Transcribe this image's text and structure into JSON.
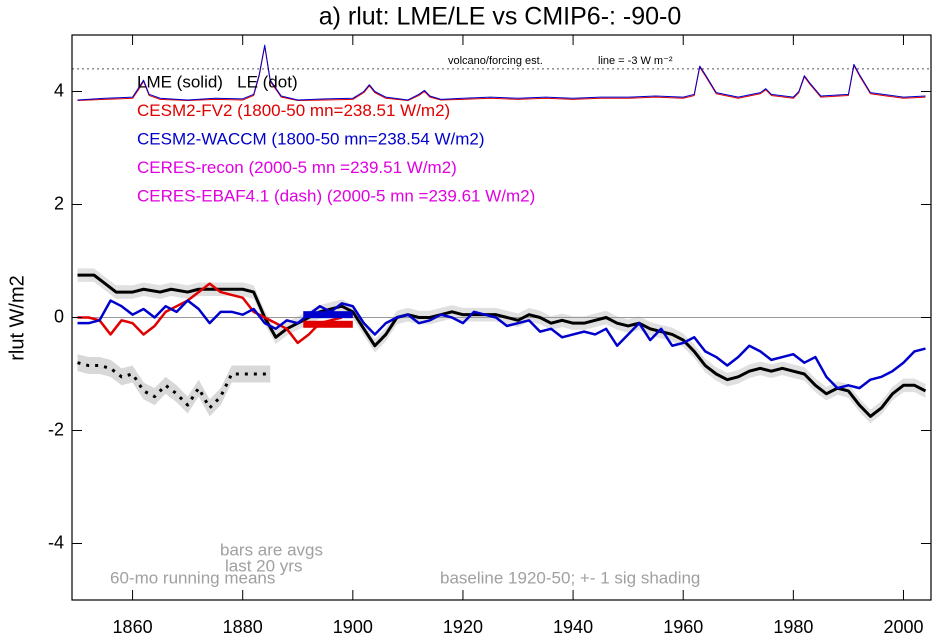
{
  "chart_data": {
    "type": "line",
    "title": "a) rlut: LME/LE vs CMIP6-: -90-0",
    "y_label": "rlut W/m2",
    "xlim": [
      1849,
      2005
    ],
    "ylim": [
      -5,
      5
    ],
    "xticks": [
      1860,
      1880,
      1900,
      1920,
      1940,
      1960,
      1980,
      2000
    ],
    "yticks": [
      -4,
      -2,
      0,
      2,
      4
    ],
    "legend": [
      {
        "text": "LME (solid)   LE (dot)",
        "color": "#000000"
      },
      {
        "text": "CESM2-FV2 (1800-50 mn=238.51 W/m2)",
        "color": "#e00000"
      },
      {
        "text": "CESM2-WACCM (1800-50 mn=238.54 W/m2)",
        "color": "#0000cc"
      },
      {
        "text": "CERES-recon (2000-5 mn =239.51 W/m2)",
        "color": "#e000e0"
      },
      {
        "text": "CERES-EBAF4.1 (dash) (2000-5 mn =239.61 W/m2)",
        "color": "#e000e0"
      }
    ],
    "annotations": {
      "volcano": "volcano/forcing est.",
      "volcano_line": "line = -3 W m⁻²",
      "bars": [
        "bars are avgs",
        "last 20 yrs"
      ],
      "running": "60-mo running means",
      "baseline": "baseline 1920-50; +- 1 sig shading"
    },
    "reference_lines": [
      {
        "value": 0,
        "style": "solid"
      },
      {
        "value": 4.4,
        "style": "dotted"
      }
    ],
    "series": [
      {
        "color": "#000000",
        "width": 3,
        "dash": "solid",
        "sigma": 0.12,
        "x": [
          1850,
          1853,
          1855,
          1857,
          1860,
          1862,
          1865,
          1867,
          1870,
          1872,
          1875,
          1877,
          1880,
          1882,
          1884,
          1886,
          1888,
          1890,
          1892,
          1894,
          1896,
          1898,
          1900,
          1902,
          1904,
          1906,
          1908,
          1910,
          1912,
          1914,
          1916,
          1918,
          1920,
          1922,
          1924,
          1926,
          1928,
          1930,
          1932,
          1934,
          1936,
          1938,
          1940,
          1942,
          1944,
          1946,
          1948,
          1950,
          1952,
          1954,
          1956,
          1958,
          1960,
          1962,
          1964,
          1966,
          1968,
          1970,
          1972,
          1974,
          1976,
          1978,
          1980,
          1982,
          1984,
          1986,
          1988,
          1990,
          1992,
          1994,
          1996,
          1998,
          2000,
          2002,
          2004
        ],
        "values": [
          0.75,
          0.75,
          0.6,
          0.45,
          0.45,
          0.5,
          0.45,
          0.5,
          0.45,
          0.5,
          0.5,
          0.5,
          0.5,
          0.45,
          0.0,
          -0.35,
          -0.2,
          -0.1,
          0.0,
          0.1,
          0.15,
          0.2,
          0.1,
          -0.2,
          -0.5,
          -0.3,
          0.0,
          0.05,
          0.0,
          0.0,
          0.05,
          0.1,
          0.05,
          0.05,
          0.05,
          0.05,
          0.0,
          -0.05,
          0.05,
          0.0,
          -0.1,
          -0.05,
          -0.1,
          -0.1,
          -0.05,
          0.0,
          -0.1,
          -0.15,
          -0.1,
          -0.2,
          -0.25,
          -0.3,
          -0.4,
          -0.6,
          -0.85,
          -1.0,
          -1.1,
          -1.05,
          -0.95,
          -0.9,
          -0.95,
          -0.9,
          -0.95,
          -1.0,
          -1.2,
          -1.35,
          -1.25,
          -1.3,
          -1.55,
          -1.75,
          -1.6,
          -1.35,
          -1.2,
          -1.2,
          -1.3
        ]
      },
      {
        "color": "#000000",
        "width": 3,
        "dash": "dot",
        "sigma": 0.15,
        "x": [
          1850,
          1852,
          1854,
          1856,
          1858,
          1860,
          1862,
          1864,
          1866,
          1868,
          1870,
          1872,
          1874,
          1876,
          1878,
          1880,
          1882,
          1884,
          1885
        ],
        "values": [
          -0.8,
          -0.85,
          -0.85,
          -0.9,
          -1.05,
          -1.0,
          -1.3,
          -1.4,
          -1.2,
          -1.35,
          -1.55,
          -1.25,
          -1.6,
          -1.4,
          -1.0,
          -1.0,
          -1.0,
          -1.0,
          -1.0
        ]
      },
      {
        "color": "#e00000",
        "width": 2.5,
        "dash": "solid",
        "x": [
          1850,
          1852,
          1854,
          1856,
          1858,
          1860,
          1862,
          1864,
          1866,
          1868,
          1870,
          1872,
          1874,
          1876,
          1878,
          1880,
          1882,
          1884,
          1886,
          1888,
          1890,
          1892,
          1894,
          1896,
          1898
        ],
        "values": [
          0.0,
          0.0,
          -0.05,
          -0.3,
          -0.05,
          -0.1,
          -0.3,
          -0.15,
          0.1,
          0.2,
          0.3,
          0.45,
          0.6,
          0.45,
          0.4,
          0.35,
          0.1,
          0.0,
          -0.1,
          -0.2,
          -0.45,
          -0.3,
          -0.1,
          -0.05,
          0.0
        ]
      },
      {
        "color": "#0000cc",
        "width": 2.5,
        "dash": "solid",
        "x": [
          1850,
          1852,
          1854,
          1856,
          1858,
          1860,
          1862,
          1864,
          1866,
          1868,
          1870,
          1872,
          1874,
          1876,
          1878,
          1880,
          1882,
          1884,
          1886,
          1888,
          1890,
          1892,
          1894,
          1896,
          1898,
          1900,
          1902,
          1904,
          1906,
          1908,
          1910,
          1912,
          1914,
          1916,
          1918,
          1920,
          1922,
          1924,
          1926,
          1928,
          1930,
          1932,
          1934,
          1936,
          1938,
          1940,
          1942,
          1944,
          1946,
          1948,
          1950,
          1952,
          1954,
          1956,
          1958,
          1960,
          1962,
          1964,
          1966,
          1968,
          1970,
          1972,
          1974,
          1976,
          1978,
          1980,
          1982,
          1984,
          1986,
          1988,
          1990,
          1992,
          1994,
          1996,
          1998,
          2000,
          2002,
          2004
        ],
        "values": [
          -0.1,
          -0.1,
          -0.05,
          0.3,
          0.2,
          0.05,
          0.15,
          0.0,
          0.2,
          0.1,
          0.3,
          0.15,
          -0.1,
          0.1,
          0.1,
          0.05,
          0.15,
          -0.1,
          -0.2,
          -0.05,
          -0.1,
          0.05,
          0.2,
          0.1,
          0.25,
          0.2,
          -0.1,
          -0.3,
          -0.1,
          0.0,
          0.05,
          -0.1,
          -0.05,
          0.05,
          0.0,
          -0.1,
          0.1,
          0.05,
          0.0,
          -0.15,
          -0.1,
          -0.05,
          -0.25,
          -0.2,
          -0.35,
          -0.3,
          -0.25,
          -0.3,
          -0.2,
          -0.5,
          -0.3,
          -0.1,
          -0.4,
          -0.2,
          -0.5,
          -0.45,
          -0.35,
          -0.6,
          -0.7,
          -0.85,
          -0.7,
          -0.5,
          -0.6,
          -0.75,
          -0.7,
          -0.65,
          -0.8,
          -0.7,
          -1.05,
          -1.25,
          -1.2,
          -1.25,
          -1.1,
          -1.05,
          -0.95,
          -0.8,
          -0.6,
          -0.55
        ]
      },
      {
        "color": "#e00000",
        "width": 1,
        "dash": "solid",
        "x": [
          1850,
          1855,
          1860,
          1861,
          1862,
          1863,
          1865,
          1870,
          1875,
          1880,
          1882,
          1883,
          1884,
          1885,
          1887,
          1890,
          1895,
          1900,
          1902,
          1903,
          1904,
          1906,
          1910,
          1912,
          1913,
          1914,
          1916,
          1920,
          1925,
          1930,
          1935,
          1940,
          1945,
          1950,
          1955,
          1960,
          1962,
          1963,
          1964,
          1966,
          1970,
          1974,
          1975,
          1976,
          1980,
          1981,
          1982,
          1983,
          1985,
          1990,
          1991,
          1992,
          1994,
          2000,
          2004
        ],
        "values": [
          3.84,
          3.86,
          3.88,
          4.02,
          4.18,
          3.93,
          3.86,
          3.84,
          3.86,
          3.85,
          3.93,
          4.28,
          4.8,
          4.18,
          3.9,
          3.84,
          3.85,
          3.86,
          3.98,
          4.1,
          3.98,
          3.88,
          3.84,
          3.93,
          4.0,
          3.9,
          3.85,
          3.86,
          3.88,
          3.86,
          3.88,
          3.86,
          3.88,
          3.88,
          3.9,
          3.88,
          3.93,
          4.43,
          4.28,
          3.96,
          3.88,
          3.96,
          4.03,
          3.93,
          3.88,
          3.98,
          4.26,
          4.13,
          3.9,
          3.93,
          4.46,
          4.28,
          3.96,
          3.88,
          3.9
        ]
      },
      {
        "color": "#0000cc",
        "width": 1,
        "dash": "solid",
        "x": [
          1850,
          1855,
          1860,
          1861,
          1862,
          1863,
          1865,
          1870,
          1875,
          1880,
          1882,
          1883,
          1884,
          1885,
          1887,
          1890,
          1895,
          1900,
          1902,
          1903,
          1904,
          1906,
          1910,
          1912,
          1913,
          1914,
          1916,
          1920,
          1925,
          1930,
          1935,
          1940,
          1945,
          1950,
          1955,
          1960,
          1962,
          1963,
          1964,
          1966,
          1970,
          1974,
          1975,
          1976,
          1980,
          1981,
          1982,
          1983,
          1985,
          1990,
          1991,
          1992,
          1994,
          2000,
          2004
        ],
        "values": [
          3.85,
          3.88,
          3.9,
          4.05,
          4.2,
          3.95,
          3.88,
          3.85,
          3.88,
          3.87,
          3.95,
          4.3,
          4.82,
          4.2,
          3.92,
          3.85,
          3.87,
          3.88,
          4.0,
          4.12,
          4.0,
          3.9,
          3.85,
          3.95,
          4.02,
          3.92,
          3.86,
          3.88,
          3.9,
          3.88,
          3.9,
          3.88,
          3.9,
          3.9,
          3.92,
          3.9,
          3.95,
          4.45,
          4.3,
          3.98,
          3.9,
          3.98,
          4.05,
          3.95,
          3.9,
          4.0,
          4.28,
          4.15,
          3.92,
          3.95,
          4.48,
          4.3,
          3.98,
          3.9,
          3.92
        ]
      }
    ],
    "avg_bars": [
      {
        "color": "#0000cc",
        "x": [
          1891,
          1900
        ],
        "value": 0.05
      },
      {
        "color": "#e00000",
        "x": [
          1891,
          1900
        ],
        "value": -0.12
      }
    ]
  }
}
